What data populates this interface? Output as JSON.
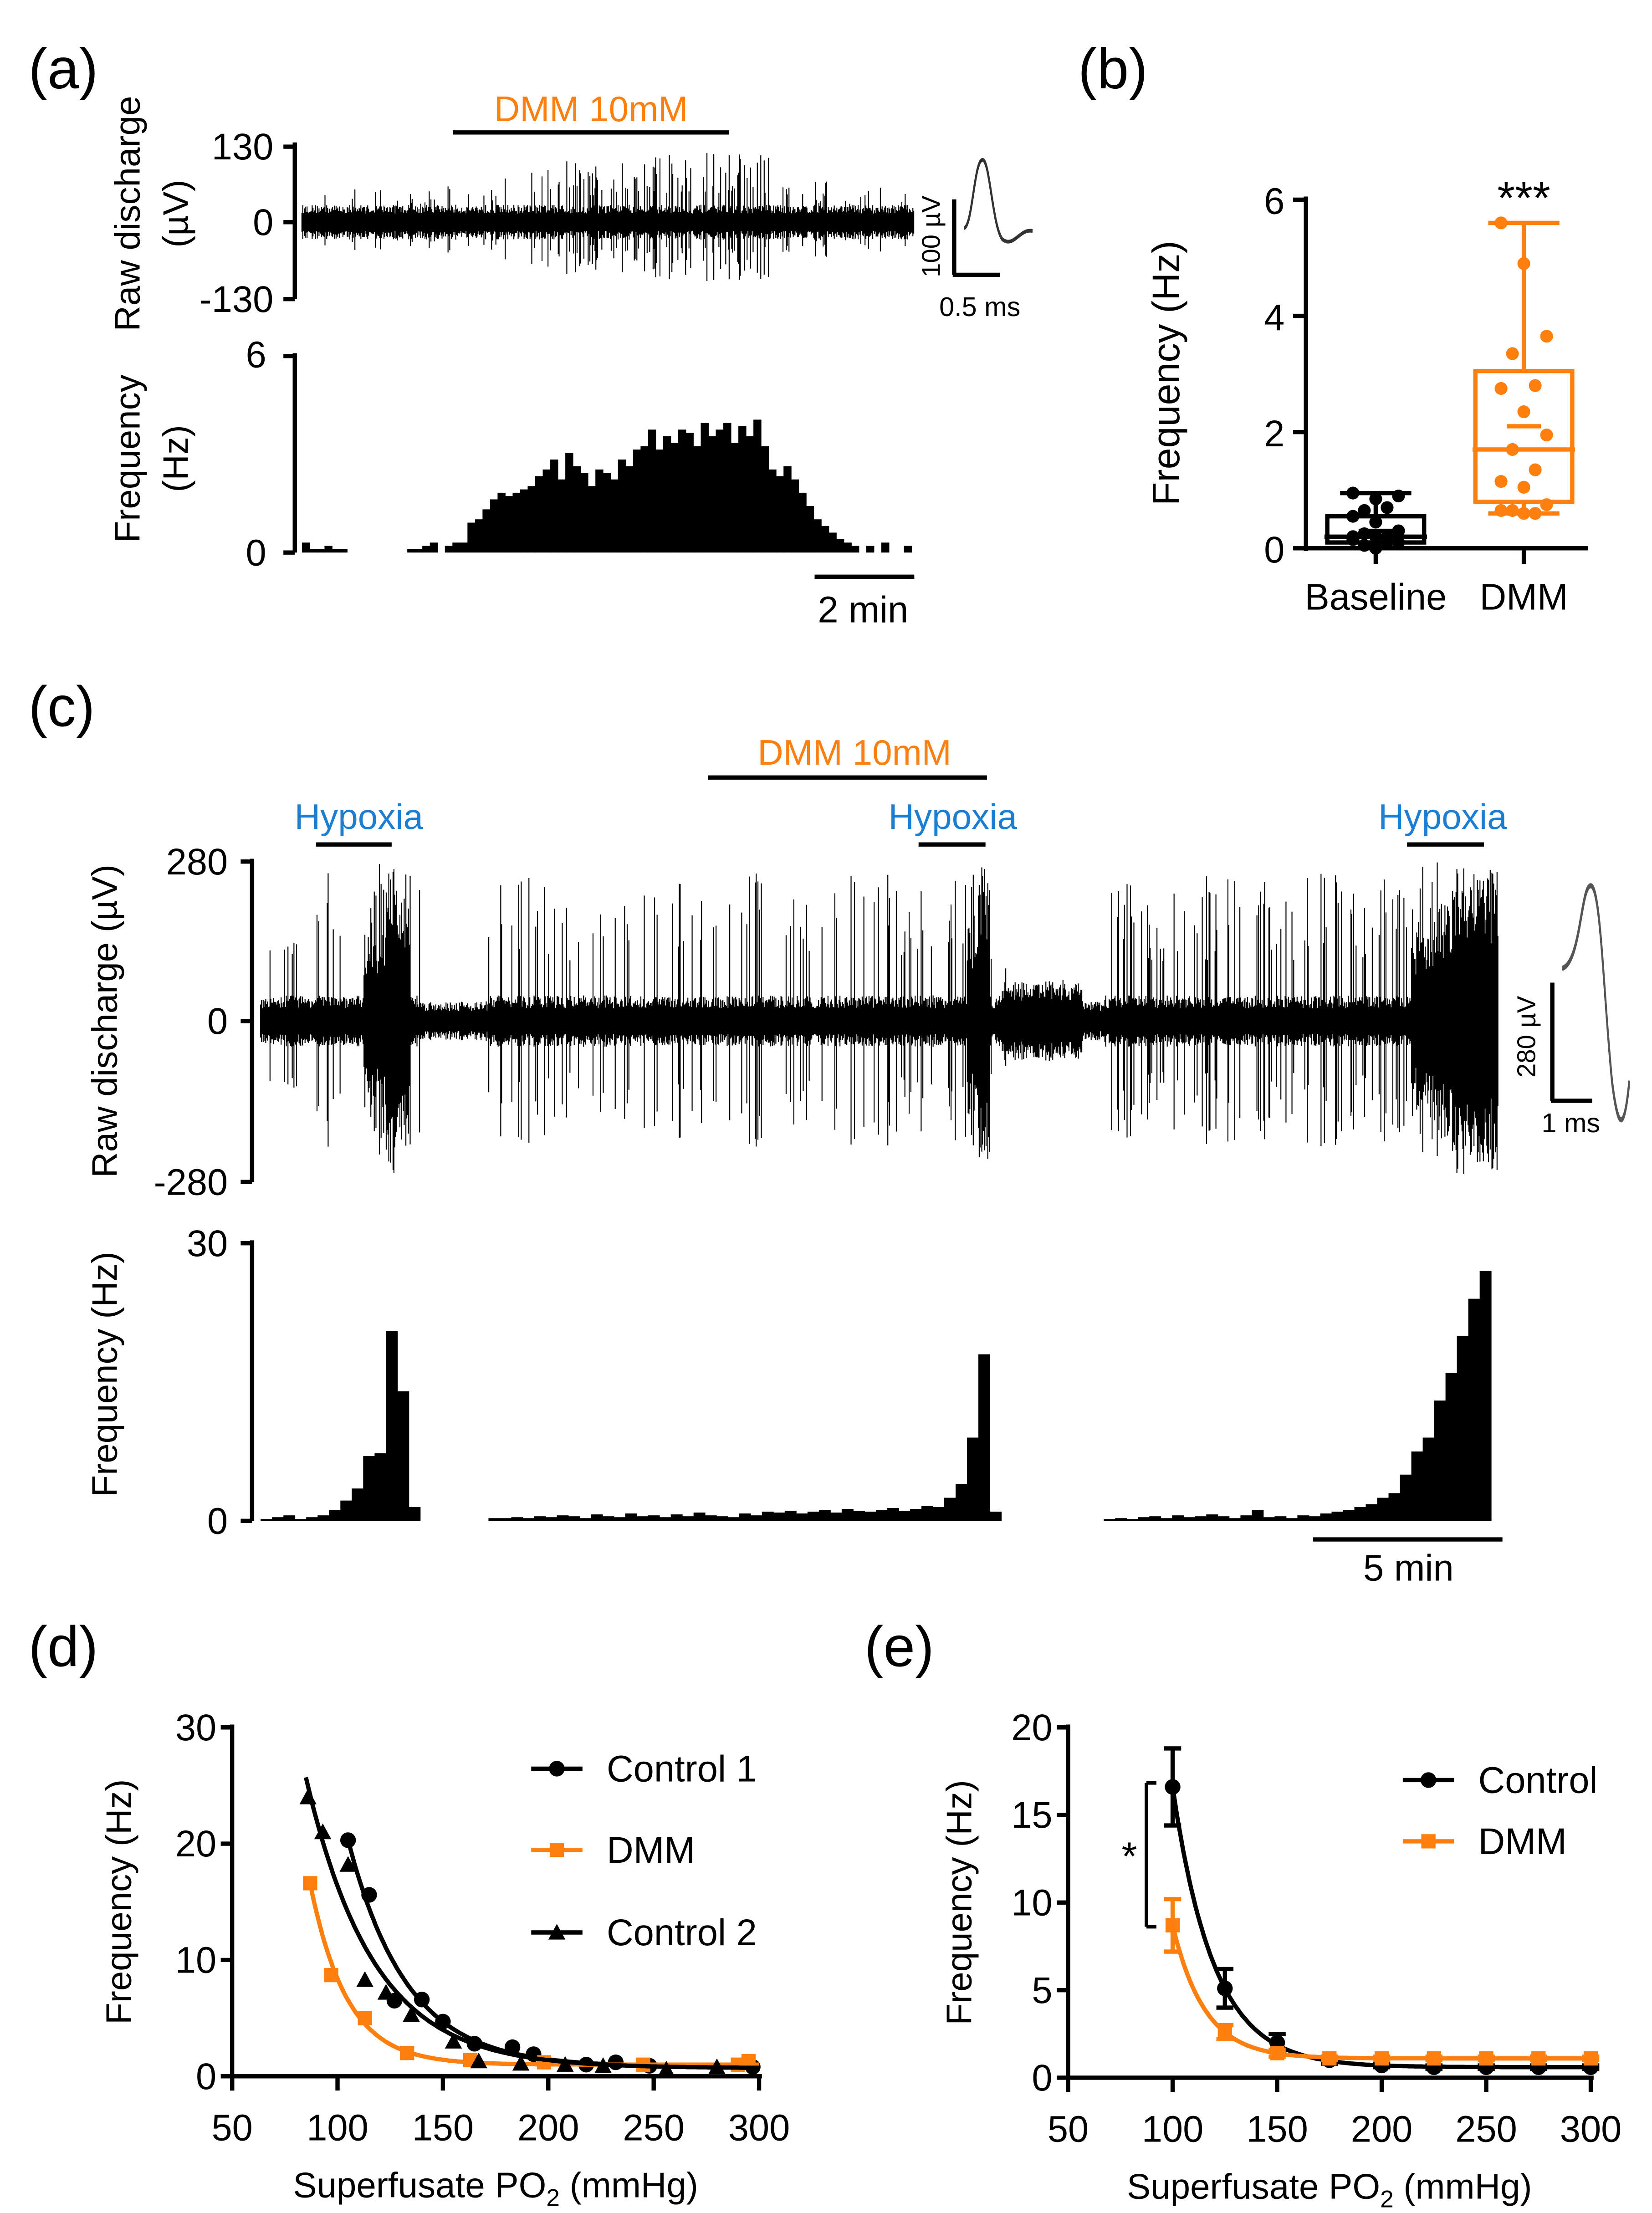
{
  "colors": {
    "black": "#000000",
    "orange": "#ff7f0e",
    "blue": "#1a7fd4"
  },
  "panels": {
    "a": "(a)",
    "b": "(b)",
    "c": "(c)",
    "d": "(d)",
    "e": "(e)"
  },
  "chart_data": [
    {
      "id": "a_raw",
      "type": "line",
      "title": "",
      "ylabel_lines": [
        "Raw discharge",
        "(µV)"
      ],
      "yticks": [
        130,
        0,
        -130
      ],
      "ylim": [
        -130,
        130
      ],
      "annotation": "DMM 10mM",
      "inset": {
        "amp_label": "100 µV",
        "time_label": "0.5 ms"
      }
    },
    {
      "id": "a_hist",
      "type": "bar",
      "ylabel_lines": [
        "Frequency",
        "(Hz)"
      ],
      "yticks": [
        6,
        0
      ],
      "ylim": [
        0,
        6
      ],
      "scalebar": "2 min",
      "values": [
        0.3,
        0.1,
        0.1,
        0.2,
        0.1,
        0.1,
        0,
        0,
        0,
        0,
        0,
        0,
        0,
        0,
        0.1,
        0.1,
        0.2,
        0.3,
        0,
        0.2,
        0.3,
        0.3,
        0.9,
        1.0,
        1.3,
        1.6,
        1.8,
        1.7,
        1.8,
        1.9,
        2.0,
        2.3,
        2.5,
        2.8,
        2.2,
        3.0,
        2.6,
        2.4,
        2.0,
        2.5,
        2.4,
        2.2,
        2.8,
        2.6,
        3.1,
        3.2,
        3.7,
        3.1,
        3.5,
        3.3,
        3.7,
        3.6,
        3.2,
        3.9,
        3.5,
        3.7,
        3.9,
        3.3,
        3.8,
        3.5,
        4.0,
        3.2,
        2.5,
        2.3,
        2.6,
        2.2,
        1.8,
        1.4,
        1.0,
        0.8,
        0.6,
        0.4,
        0.3,
        0.2,
        0,
        0.2,
        0,
        0.3,
        0,
        0,
        0.2
      ]
    },
    {
      "id": "b",
      "type": "box",
      "ylabel": "Frequency (Hz)",
      "yticks": [
        0,
        2,
        4,
        6
      ],
      "ylim": [
        0,
        6
      ],
      "categories": [
        "Baseline",
        "DMM"
      ],
      "significance": "***",
      "groups": [
        {
          "name": "Baseline",
          "color": "#000000",
          "min": 0.0,
          "q1": 0.1,
          "median": 0.2,
          "q3": 0.55,
          "max": 0.95,
          "mean": 0.3,
          "points": [
            0.95,
            0.85,
            0.9,
            0.65,
            0.7,
            0.55,
            0.45,
            0.3,
            0.25,
            0.2,
            0.15,
            0.2,
            0.1,
            0.05,
            0.1,
            0.2,
            0.0
          ]
        },
        {
          "name": "DMM",
          "color": "#ff7f0e",
          "min": 0.6,
          "q1": 0.8,
          "median": 1.7,
          "q3": 3.05,
          "max": 5.6,
          "mean": 2.1,
          "points": [
            5.6,
            4.9,
            3.65,
            3.35,
            2.8,
            2.75,
            2.35,
            1.95,
            1.7,
            1.35,
            1.15,
            1.05,
            0.75,
            0.65,
            0.6,
            0.65,
            0.6
          ]
        }
      ]
    },
    {
      "id": "c_raw",
      "type": "line",
      "ylabel": "Raw discharge (µV)",
      "yticks": [
        280,
        0,
        -280
      ],
      "ylim": [
        -280,
        280
      ],
      "annotations": {
        "dmm": "DMM 10mM",
        "hypoxia": [
          "Hypoxia",
          "Hypoxia",
          "Hypoxia"
        ]
      },
      "inset": {
        "amp_label": "280 µV",
        "time_label": "1 ms"
      }
    },
    {
      "id": "c_hist",
      "type": "bar",
      "ylabel": "Frequency (Hz)",
      "yticks": [
        30,
        0
      ],
      "ylim": [
        0,
        30
      ],
      "scalebar": "5 min",
      "values": [
        0.2,
        0.4,
        0.6,
        0.2,
        0.4,
        0.6,
        1.2,
        2.2,
        3.5,
        7,
        7.3,
        20.5,
        14,
        1.5,
        null,
        null,
        null,
        null,
        null,
        null,
        0.3,
        0.3,
        0.4,
        0.3,
        0.5,
        0.4,
        0.6,
        0.5,
        0.3,
        0.7,
        0.5,
        0.4,
        0.8,
        0.5,
        0.6,
        0.4,
        0.7,
        0.5,
        0.9,
        0.6,
        0.5,
        0.4,
        0.8,
        0.6,
        1.0,
        0.9,
        1.1,
        0.8,
        1.0,
        1.2,
        0.9,
        1.3,
        1.1,
        1.0,
        1.2,
        1.4,
        1.1,
        1.3,
        1.6,
        1.5,
        2.5,
        4,
        9,
        18,
        1,
        null,
        null,
        null,
        null,
        null,
        null,
        null,
        null,
        null,
        0.2,
        0.3,
        0.2,
        0.4,
        0.5,
        0.3,
        0.6,
        0.4,
        0.5,
        0.7,
        0.5,
        0.3,
        0.6,
        1.2,
        0.4,
        0.5,
        0.3,
        0.6,
        0.5,
        0.8,
        1.0,
        1.2,
        1.5,
        1.8,
        2.5,
        3,
        5,
        7.5,
        9,
        13,
        16,
        20,
        24,
        27
      ]
    },
    {
      "id": "d",
      "type": "scatter",
      "xlabel": {
        "main": "Superfusate PO",
        "sub": "2",
        "unit": " (mmHg)"
      },
      "ylabel": "Frequency (Hz)",
      "xticks": [
        50,
        100,
        150,
        200,
        250,
        300
      ],
      "yticks": [
        0,
        10,
        20,
        30
      ],
      "xlim": [
        50,
        300
      ],
      "ylim": [
        0,
        30
      ],
      "series": [
        {
          "name": "Control 1",
          "color": "#000000",
          "marker": "circle",
          "points": [
            [
              105,
              20.3
            ],
            [
              115,
              15.6
            ],
            [
              127,
              6.5
            ],
            [
              140,
              6.6
            ],
            [
              150,
              4.7
            ],
            [
              165,
              2.8
            ],
            [
              183,
              2.5
            ],
            [
              193,
              1.9
            ],
            [
              218,
              1.0
            ],
            [
              232,
              1.2
            ],
            [
              248,
              0.9
            ],
            [
              297,
              0.8
            ]
          ],
          "fit": {
            "plateau": 0.8,
            "span": 19.5,
            "k": 0.0358,
            "x0": 105,
            "x_end": 300
          }
        },
        {
          "name": "DMM",
          "color": "#ff7f0e",
          "marker": "square",
          "points": [
            [
              87,
              16.6
            ],
            [
              97,
              8.7
            ],
            [
              113,
              5.0
            ],
            [
              133,
              2.0
            ],
            [
              163,
              1.4
            ],
            [
              198,
              1.2
            ],
            [
              245,
              1.0
            ],
            [
              290,
              1.0
            ],
            [
              295,
              1.3
            ]
          ],
          "fit": {
            "plateau": 1.0,
            "span": 15.6,
            "k": 0.0575,
            "x0": 87,
            "x_end": 300
          }
        },
        {
          "name": "Control 2",
          "color": "#000000",
          "marker": "triangle",
          "points": [
            [
              86,
              24
            ],
            [
              93,
              21
            ],
            [
              105,
              18.2
            ],
            [
              113,
              8.3
            ],
            [
              123,
              7.2
            ],
            [
              135,
              5.3
            ],
            [
              155,
              3.0
            ],
            [
              167,
              1.3
            ],
            [
              187,
              1.1
            ],
            [
              208,
              1.0
            ],
            [
              226,
              0.9
            ],
            [
              256,
              0.6
            ],
            [
              280,
              0.8
            ]
          ],
          "fit": {
            "plateau": 0.7,
            "span": 25.0,
            "k": 0.0312,
            "x0": 85,
            "x_end": 300
          }
        }
      ]
    },
    {
      "id": "e",
      "type": "scatter",
      "xlabel": {
        "main": "Superfusate PO",
        "sub": "2",
        "unit": " (mmHg)"
      },
      "ylabel": "Frequency (Hz)",
      "xticks": [
        50,
        100,
        150,
        200,
        250,
        300
      ],
      "yticks": [
        0,
        5,
        10,
        15,
        20
      ],
      "xlim": [
        50,
        300
      ],
      "ylim": [
        0,
        20
      ],
      "significance": "*",
      "series": [
        {
          "name": "Control",
          "color": "#000000",
          "marker": "circle",
          "points": [
            [
              100,
              16.6,
              2.2
            ],
            [
              125,
              5.1,
              1.1
            ],
            [
              150,
              2.0,
              0.5
            ],
            [
              175,
              1.0,
              0.2
            ],
            [
              200,
              0.7,
              0.1
            ],
            [
              225,
              0.6,
              0.1
            ],
            [
              250,
              0.6,
              0.1
            ],
            [
              275,
              0.6,
              0.1
            ],
            [
              300,
              0.6,
              0.1
            ]
          ],
          "fit": {
            "plateau": 0.6,
            "span": 16.0,
            "k": 0.0507,
            "x0": 100,
            "x_end": 300
          }
        },
        {
          "name": "DMM",
          "color": "#ff7f0e",
          "marker": "square",
          "points": [
            [
              100,
              8.7,
              1.5
            ],
            [
              125,
              2.6,
              0.4
            ],
            [
              150,
              1.4,
              0.2
            ],
            [
              175,
              1.1,
              0.1
            ],
            [
              200,
              1.1,
              0.1
            ],
            [
              225,
              1.1,
              0.1
            ],
            [
              250,
              1.1,
              0.1
            ],
            [
              275,
              1.1,
              0.1
            ],
            [
              300,
              1.1,
              0.1
            ]
          ],
          "fit": {
            "plateau": 1.1,
            "span": 7.6,
            "k": 0.065,
            "x0": 100,
            "x_end": 300
          }
        }
      ]
    }
  ]
}
